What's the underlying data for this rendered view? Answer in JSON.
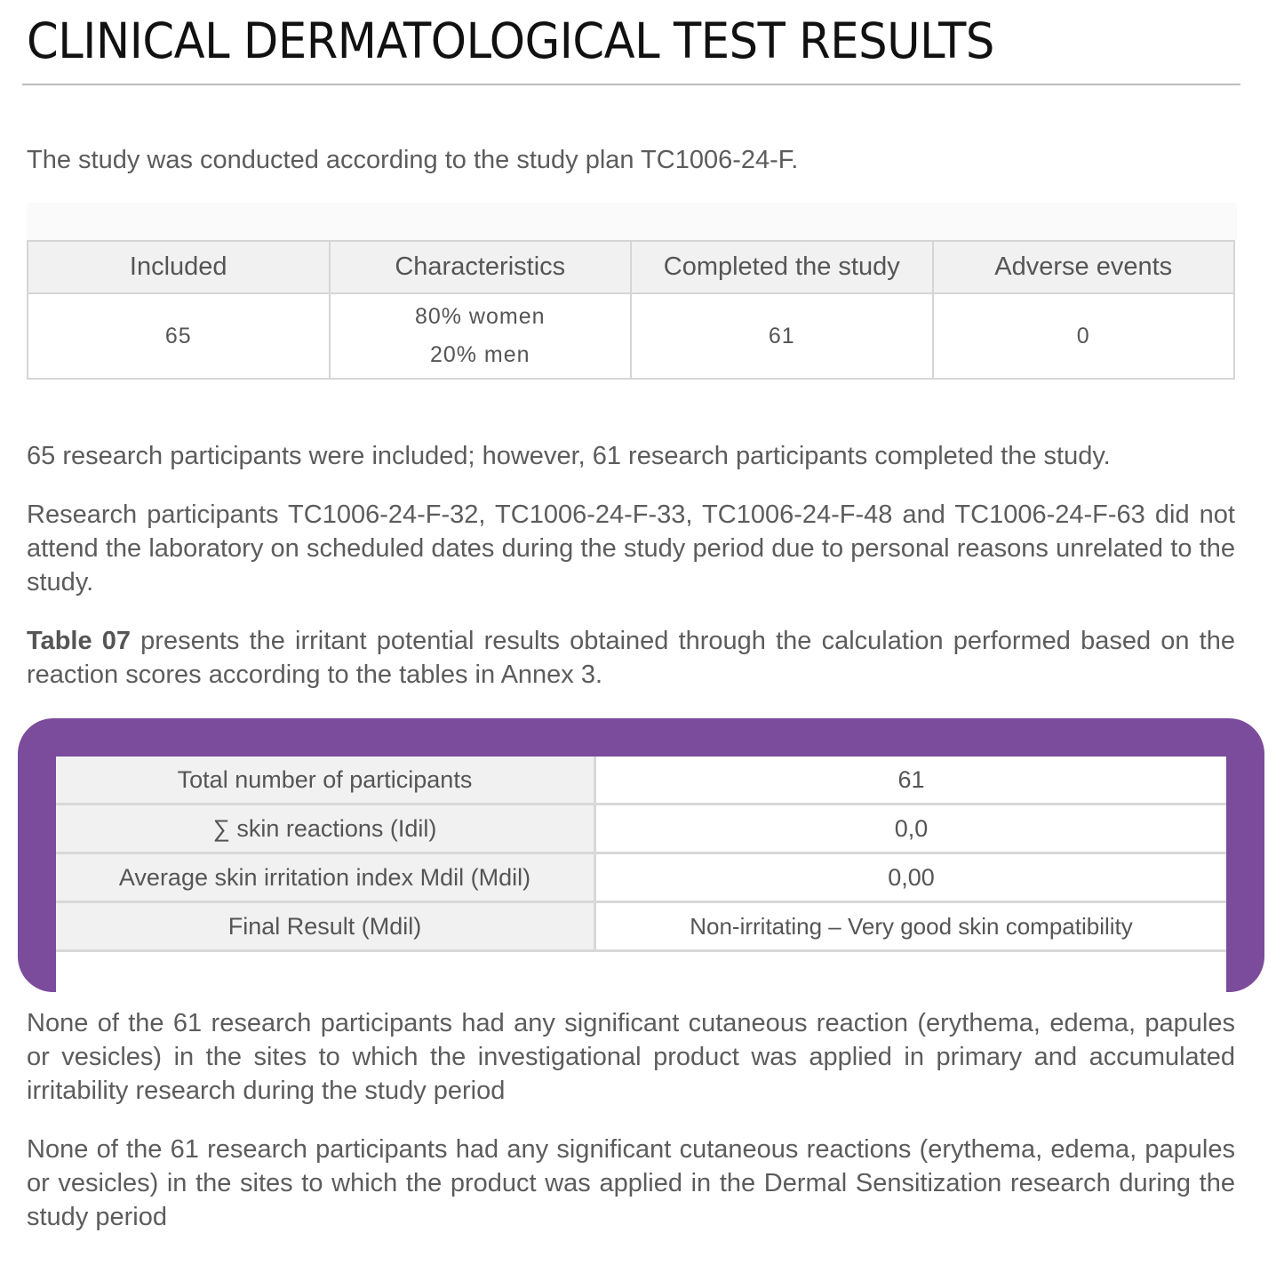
{
  "title": "CLINICAL DERMATOLOGICAL TEST RESULTS",
  "intro": "The study was conducted according to the study plan TC1006-24-F.",
  "table1": {
    "headers": [
      "Included",
      "Characteristics",
      "Completed the study",
      "Adverse events"
    ],
    "row": {
      "included": "65",
      "characteristics_line1": "80% women",
      "characteristics_line2": "20% men",
      "completed": "61",
      "adverse": "0"
    }
  },
  "para1": "65 research participants were included; however, 61 research participants completed the study.",
  "para2": "Research participants TC1006-24-F-32, TC1006-24-F-33, TC1006-24-F-48 and TC1006-24-F-63 did not attend the laboratory on scheduled dates during the study period due to personal reasons unrelated to the study.",
  "para3_bold": "Table 07",
  "para3": " presents the irritant potential results obtained through the calculation performed based on the reaction scores according to the tables in Annex 3.",
  "table2": {
    "rows": [
      {
        "label": "Total number of participants",
        "value": "61"
      },
      {
        "label": "∑ skin reactions (Idil)",
        "value": "0,0"
      },
      {
        "label": "Average skin irritation index Mdil (Mdil)",
        "value": "0,00"
      },
      {
        "label": "Final Result (Mdil)",
        "value": "Non-irritating – Very good skin compatibility"
      }
    ],
    "highlight_color": "#7b4b9c"
  },
  "para4": "None of the 61 research participants had any significant cutaneous reaction (erythema, edema, papules or vesicles) in the sites to which the investigational product was applied in primary and accumulated irritability research during the study period",
  "para5": "None of the 61 research participants had any significant cutaneous reactions (erythema, edema, papules or vesicles) in the sites to which the product was applied in the Dermal Sensitization research during the study period"
}
